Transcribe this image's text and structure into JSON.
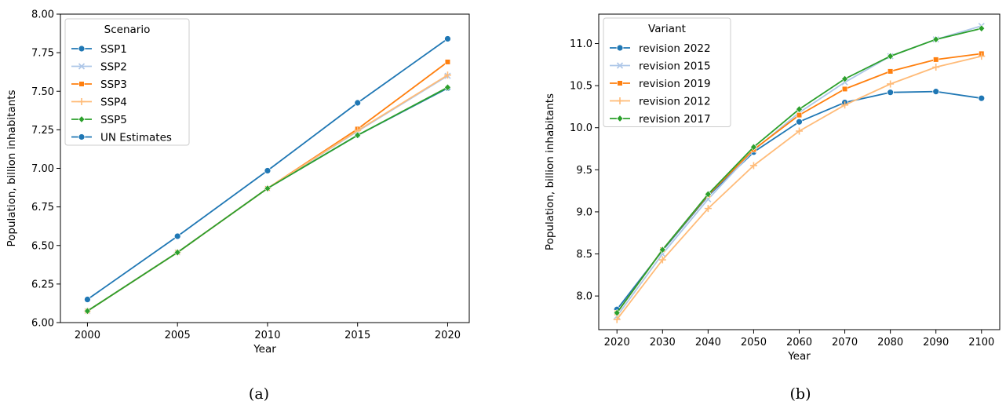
{
  "chart_data": [
    {
      "type": "line",
      "caption": "(a)",
      "xlabel": "Year",
      "ylabel": "Population, billion inhabitants",
      "xlim": [
        1998.5,
        2021.2
      ],
      "ylim": [
        6.0,
        8.0
      ],
      "xticks": [
        2000,
        2005,
        2010,
        2015,
        2020
      ],
      "yticks": [
        6.0,
        6.25,
        6.5,
        6.75,
        7.0,
        7.25,
        7.5,
        7.75,
        8.0
      ],
      "ytick_labels": [
        "6.00",
        "6.25",
        "6.50",
        "6.75",
        "7.00",
        "7.25",
        "7.50",
        "7.75",
        "8.00"
      ],
      "grid": false,
      "legend": {
        "title": "Scenario",
        "placement": "upper left"
      },
      "x": [
        2000,
        2005,
        2010,
        2015,
        2020
      ],
      "series": [
        {
          "name": "SSP1",
          "color": "#1f77b4",
          "marker": "circle",
          "values": [
            6.075,
            6.455,
            6.87,
            7.215,
            7.52
          ]
        },
        {
          "name": "SSP2",
          "color": "#aec7e8",
          "marker": "x",
          "values": [
            6.075,
            6.455,
            6.87,
            7.24,
            7.6
          ]
        },
        {
          "name": "SSP3",
          "color": "#ff7f0e",
          "marker": "square",
          "values": [
            6.075,
            6.455,
            6.87,
            7.255,
            7.69
          ]
        },
        {
          "name": "SSP4",
          "color": "#ffbb78",
          "marker": "plus",
          "values": [
            6.075,
            6.455,
            6.87,
            7.245,
            7.605
          ]
        },
        {
          "name": "SSP5",
          "color": "#2ca02c",
          "marker": "diamond",
          "values": [
            6.075,
            6.455,
            6.87,
            7.215,
            7.525
          ]
        },
        {
          "name": "UN Estimates",
          "color": "#1f77b4",
          "marker": "circle",
          "values": [
            6.15,
            6.56,
            6.985,
            7.425,
            7.84
          ]
        }
      ]
    },
    {
      "type": "line",
      "caption": "(b)",
      "xlabel": "Year",
      "ylabel": "Population, billion inhabitants",
      "xlim": [
        2016,
        2104
      ],
      "ylim": [
        7.6,
        11.35
      ],
      "xticks": [
        2020,
        2030,
        2040,
        2050,
        2060,
        2070,
        2080,
        2090,
        2100
      ],
      "yticks": [
        8.0,
        8.5,
        9.0,
        9.5,
        10.0,
        10.5,
        11.0
      ],
      "ytick_labels": [
        "8.0",
        "8.5",
        "9.0",
        "9.5",
        "10.0",
        "10.5",
        "11.0"
      ],
      "grid": false,
      "legend": {
        "title": "Variant",
        "placement": "upper left"
      },
      "x": [
        2020,
        2030,
        2040,
        2050,
        2060,
        2070,
        2080,
        2090,
        2100
      ],
      "series": [
        {
          "name": "revision 2022",
          "color": "#1f77b4",
          "marker": "circle",
          "values": [
            7.84,
            8.54,
            9.19,
            9.71,
            10.07,
            10.3,
            10.42,
            10.43,
            10.35
          ]
        },
        {
          "name": "revision 2015",
          "color": "#aec7e8",
          "marker": "x",
          "values": [
            7.76,
            8.5,
            9.15,
            9.73,
            10.18,
            10.54,
            10.85,
            11.05,
            11.21
          ]
        },
        {
          "name": "revision 2019",
          "color": "#ff7f0e",
          "marker": "square",
          "values": [
            7.8,
            8.55,
            9.2,
            9.74,
            10.15,
            10.46,
            10.67,
            10.81,
            10.88
          ]
        },
        {
          "name": "revision 2012",
          "color": "#ffbb78",
          "marker": "plus",
          "values": [
            7.72,
            8.43,
            9.04,
            9.55,
            9.96,
            10.27,
            10.52,
            10.72,
            10.85
          ]
        },
        {
          "name": "revision 2017",
          "color": "#2ca02c",
          "marker": "diamond",
          "values": [
            7.8,
            8.55,
            9.21,
            9.77,
            10.22,
            10.58,
            10.85,
            11.05,
            11.18
          ]
        }
      ]
    }
  ]
}
